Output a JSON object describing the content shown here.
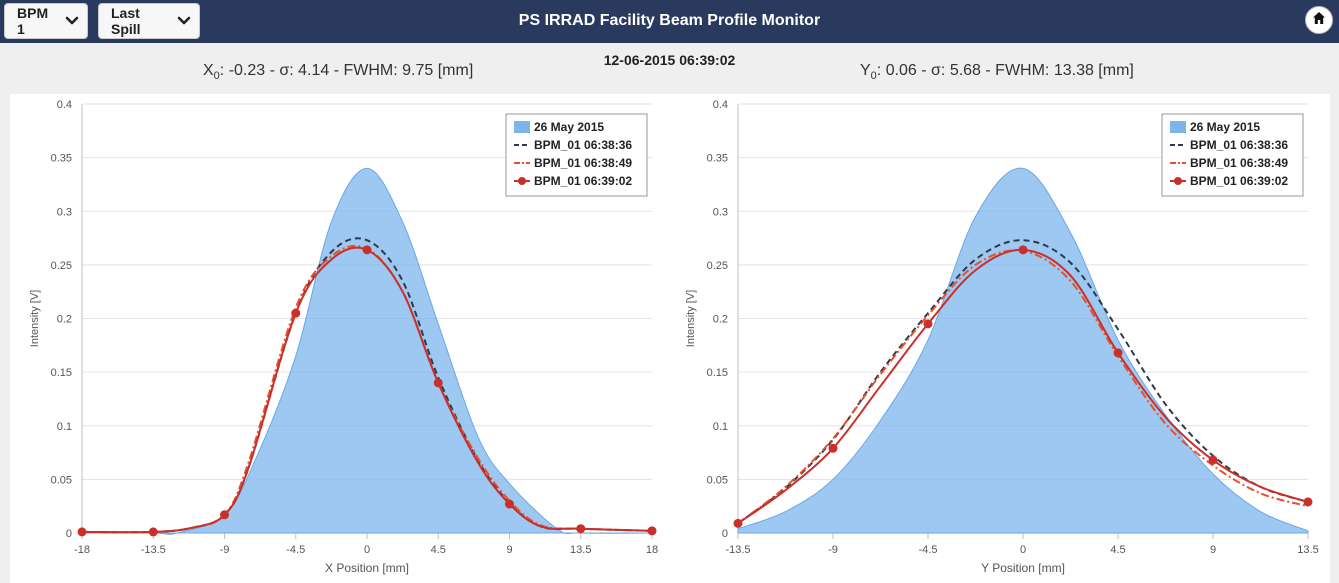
{
  "header": {
    "bpm_select": "BPM 1",
    "spill_select": "Last Spill",
    "title": "PS IRRAD Facility Beam Profile Monitor"
  },
  "timestamp": "12-06-2015 06:39:02",
  "stats_x": {
    "prefix": "X",
    "sub": "0",
    "text": ": -0.23 - σ: 4.14 - FWHM: 9.75 [mm]"
  },
  "stats_y": {
    "prefix": "Y",
    "sub": "0",
    "text": ": 0.06 - σ: 5.68 - FWHM: 13.38 [mm]"
  },
  "chart_data": [
    {
      "type": "line",
      "xlabel": "X Position [mm]",
      "ylabel": "Intensity [V]",
      "xlim": [
        -18,
        18
      ],
      "ylim": [
        0,
        0.4
      ],
      "xticks": [
        -18,
        -13.5,
        -9,
        -4.5,
        0,
        4.5,
        9,
        13.5,
        18
      ],
      "yticks": [
        0,
        0.05,
        0.1,
        0.15,
        0.2,
        0.25,
        0.3,
        0.35,
        0.4
      ],
      "grid": true,
      "legend_position": "top-right",
      "series": [
        {
          "name": "26 May 2015",
          "style": "area",
          "color": "#7cb5ec",
          "x": [
            -18,
            -13.5,
            -12,
            -9,
            -7,
            -4.5,
            -2.25,
            0,
            2.25,
            4.5,
            7,
            9,
            12,
            13.5,
            18
          ],
          "y": [
            0,
            0,
            0,
            0.017,
            0.07,
            0.165,
            0.29,
            0.34,
            0.29,
            0.195,
            0.09,
            0.046,
            0.004,
            0,
            0
          ]
        },
        {
          "name": "BPM_01 06:38:36",
          "style": "dash",
          "color": "#2b3a4f",
          "x": [
            -18,
            -13.5,
            -11,
            -9,
            -7.5,
            -4.5,
            -2.25,
            0,
            2.25,
            4.5,
            7,
            9,
            11,
            13.5,
            18
          ],
          "y": [
            0.001,
            0.001,
            0.005,
            0.017,
            0.06,
            0.205,
            0.262,
            0.273,
            0.235,
            0.145,
            0.068,
            0.028,
            0.006,
            0.004,
            0.002
          ]
        },
        {
          "name": "BPM_01 06:38:49",
          "style": "dashdot",
          "color": "#e8502a",
          "x": [
            -18,
            -13.5,
            -11,
            -9,
            -7.5,
            -4.5,
            -2.25,
            0,
            2.25,
            4.5,
            7,
            9,
            11,
            13.5,
            18
          ],
          "y": [
            0.001,
            0.001,
            0.005,
            0.017,
            0.065,
            0.21,
            0.258,
            0.265,
            0.225,
            0.14,
            0.07,
            0.03,
            0.007,
            0.004,
            0.002
          ]
        },
        {
          "name": "BPM_01 06:39:02",
          "style": "marker",
          "color": "#c9302c",
          "x": [
            -18,
            -13.5,
            -11,
            -9,
            -7.5,
            -4.5,
            -2.25,
            0,
            2.25,
            4.5,
            7,
            9,
            11,
            13.5,
            18
          ],
          "y": [
            0.001,
            0.001,
            0.005,
            0.017,
            0.06,
            0.205,
            0.255,
            0.264,
            0.225,
            0.14,
            0.066,
            0.027,
            0.006,
            0.004,
            0.002
          ],
          "markers_x": [
            -18,
            -13.5,
            -9,
            -4.5,
            0,
            4.5,
            9,
            13.5,
            18
          ]
        }
      ]
    },
    {
      "type": "line",
      "xlabel": "Y Position [mm]",
      "ylabel": "Intensity [V]",
      "xlim": [
        -13.5,
        13.5
      ],
      "ylim": [
        0,
        0.4
      ],
      "xticks": [
        -13.5,
        -9,
        -4.5,
        0,
        4.5,
        9,
        13.5
      ],
      "yticks": [
        0,
        0.05,
        0.1,
        0.15,
        0.2,
        0.25,
        0.3,
        0.35,
        0.4
      ],
      "grid": true,
      "legend_position": "top-right",
      "series": [
        {
          "name": "26 May 2015",
          "style": "area",
          "color": "#7cb5ec",
          "x": [
            -13.5,
            -11.25,
            -9,
            -6.75,
            -4.5,
            -2.25,
            0,
            2.25,
            4.5,
            6.75,
            9,
            11.25,
            13.5
          ],
          "y": [
            0.004,
            0.02,
            0.05,
            0.105,
            0.18,
            0.295,
            0.34,
            0.28,
            0.18,
            0.11,
            0.055,
            0.02,
            0.002
          ]
        },
        {
          "name": "BPM_01 06:38:36",
          "style": "dash",
          "color": "#2b3a4f",
          "x": [
            -13.5,
            -11.25,
            -9,
            -6.75,
            -4.5,
            -2.25,
            0,
            2.25,
            4.5,
            6.75,
            9,
            11.25,
            13.5
          ],
          "y": [
            0.009,
            0.042,
            0.087,
            0.15,
            0.205,
            0.255,
            0.273,
            0.252,
            0.19,
            0.12,
            0.072,
            0.043,
            0.029
          ]
        },
        {
          "name": "BPM_01 06:38:49",
          "style": "dashdot",
          "color": "#e8502a",
          "x": [
            -13.5,
            -11.25,
            -9,
            -6.75,
            -4.5,
            -2.25,
            0,
            2.25,
            4.5,
            6.75,
            9,
            11.25,
            13.5
          ],
          "y": [
            0.009,
            0.043,
            0.088,
            0.148,
            0.203,
            0.25,
            0.263,
            0.235,
            0.165,
            0.102,
            0.063,
            0.037,
            0.025
          ]
        },
        {
          "name": "BPM_01 06:39:02",
          "style": "marker",
          "color": "#c9302c",
          "x": [
            -13.5,
            -11.25,
            -9,
            -6.75,
            -4.5,
            -2.25,
            0,
            2.25,
            4.5,
            6.75,
            9,
            11.25,
            13.5
          ],
          "y": [
            0.009,
            0.04,
            0.079,
            0.137,
            0.195,
            0.245,
            0.264,
            0.24,
            0.168,
            0.108,
            0.068,
            0.043,
            0.029
          ],
          "markers_x": [
            -13.5,
            -9,
            -4.5,
            0,
            4.5,
            9,
            13.5
          ]
        }
      ]
    }
  ]
}
